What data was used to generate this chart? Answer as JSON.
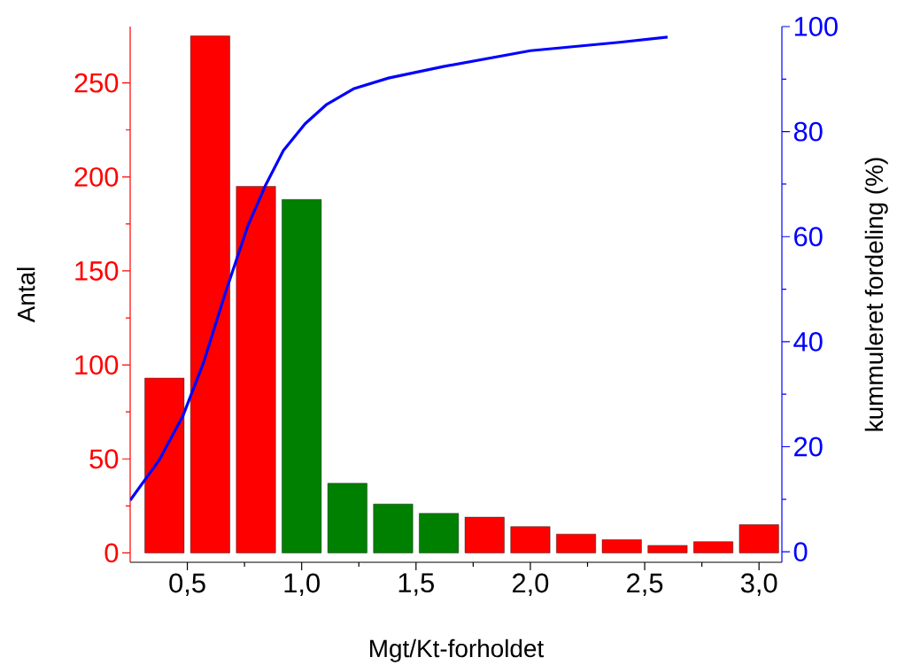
{
  "chart_data": {
    "type": "histogram",
    "xlabel": "Mgt/Kt-forholdet",
    "ylabel": "Antal",
    "y2label": "kummuleret fordeling (%)",
    "bins": [
      0.3,
      0.5,
      0.7,
      0.9,
      1.1,
      1.3,
      1.5,
      1.7,
      1.9,
      2.1,
      2.3,
      2.5,
      2.7,
      2.9,
      3.1
    ],
    "values": [
      93,
      275,
      195,
      188,
      37,
      26,
      21,
      19,
      14,
      10,
      7,
      4,
      6,
      15
    ],
    "colors": [
      "#ff0000",
      "#ff0000",
      "#ff0000",
      "#008000",
      "#008000",
      "#008000",
      "#008000",
      "#ff0000",
      "#ff0000",
      "#ff0000",
      "#ff0000",
      "#ff0000",
      "#ff0000",
      "#ff0000"
    ],
    "series": [
      {
        "type": "line",
        "axis": "y2",
        "color": "#0000ff",
        "x": [
          0.25,
          0.376,
          0.48,
          0.57,
          0.667,
          0.764,
          0.84,
          0.92,
          1.015,
          1.11,
          1.23,
          1.38,
          1.62,
          2.0,
          2.39,
          2.6
        ],
        "values": [
          9.8,
          17.4,
          25.8,
          35.9,
          49.4,
          62,
          69.6,
          76.4,
          81.5,
          85.2,
          88.2,
          90.2,
          92.4,
          95.4,
          97,
          98
        ]
      }
    ],
    "xlim": [
      0.25,
      3.1
    ],
    "xticks": [
      {
        "value": 0.5,
        "label": "0,5"
      },
      {
        "value": 1.0,
        "label": "1,0"
      },
      {
        "value": 1.5,
        "label": "1,5"
      },
      {
        "value": 2.0,
        "label": "2,0"
      },
      {
        "value": 2.5,
        "label": "2,5"
      },
      {
        "value": 3.0,
        "label": "3,0"
      }
    ],
    "ylim": [
      -5,
      280
    ],
    "yticks": [
      0,
      50,
      100,
      150,
      200,
      250
    ],
    "y2lim": [
      -2,
      100
    ],
    "y2ticks": [
      0,
      20,
      40,
      60,
      80,
      100
    ],
    "legend": false,
    "grid": false
  }
}
